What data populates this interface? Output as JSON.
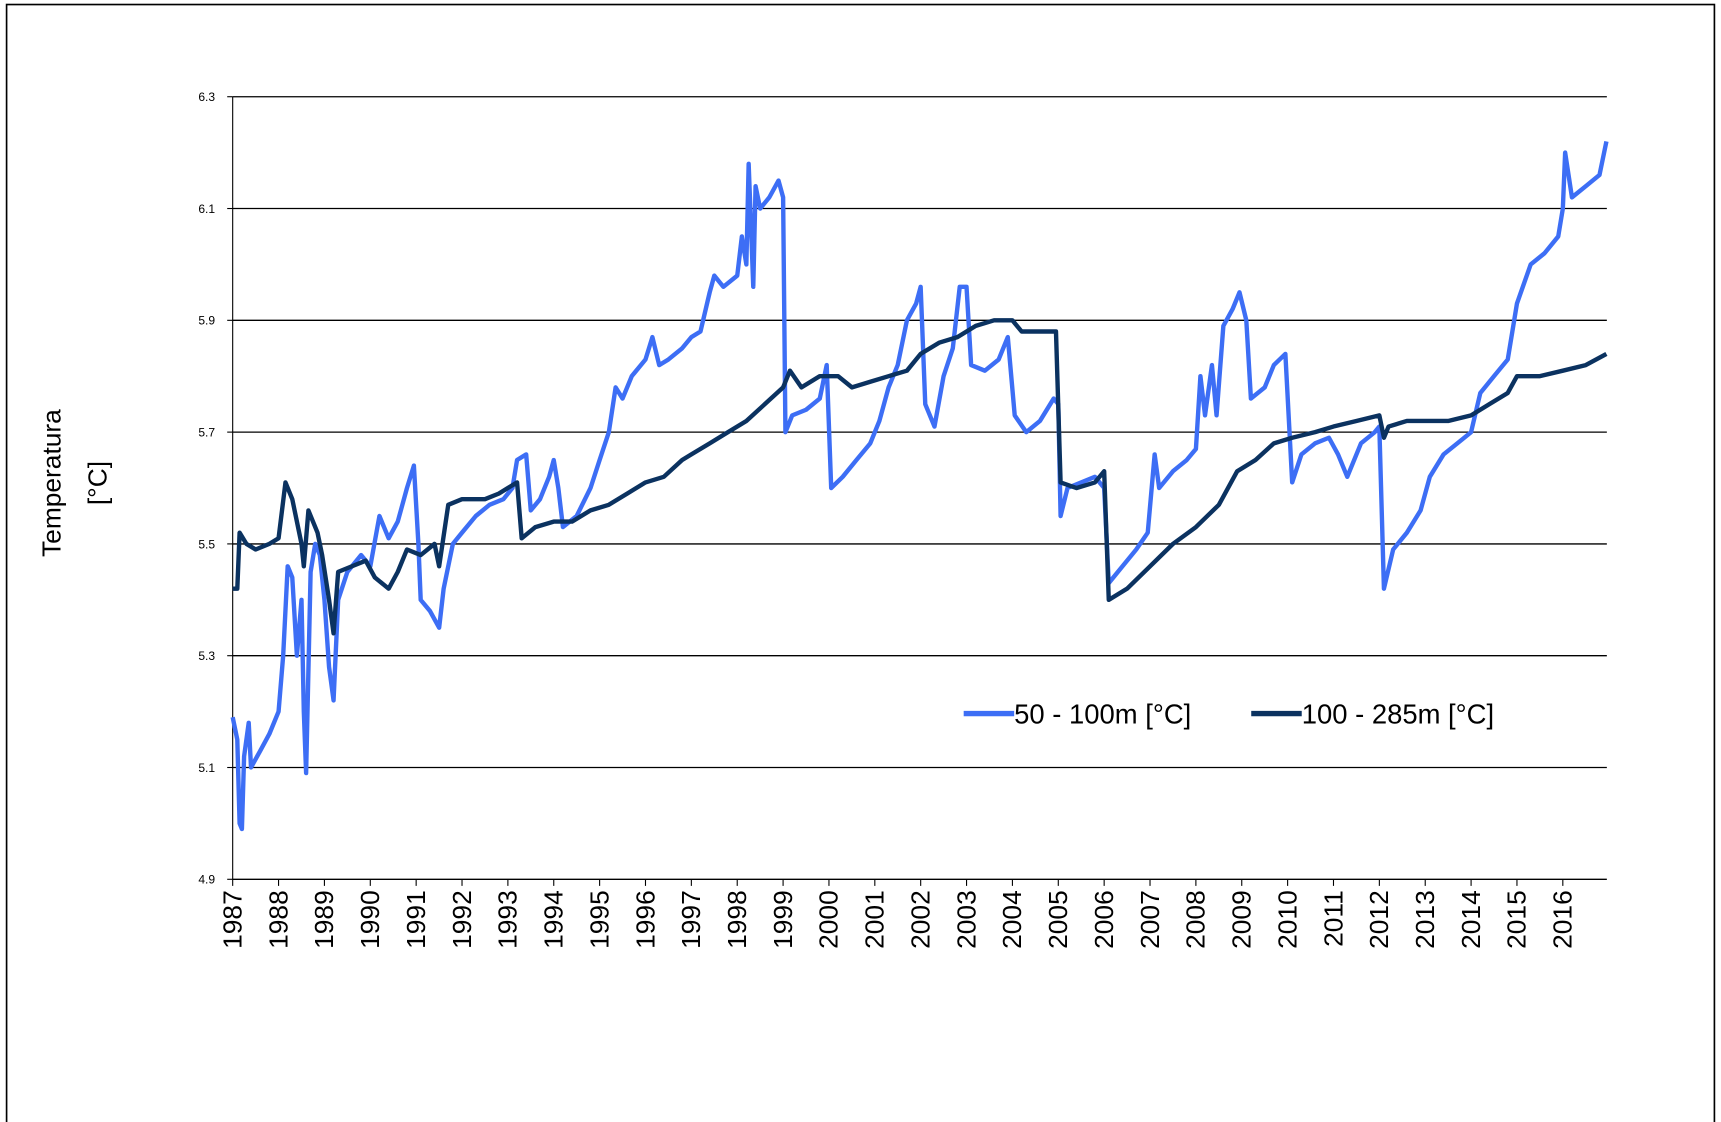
{
  "chart_data": {
    "type": "line",
    "y_label": [
      "Temperatura",
      "[°C]"
    ],
    "xlim": [
      1987,
      2016.96
    ],
    "xticks": [
      1987,
      1988,
      1989,
      1990,
      1991,
      1992,
      1993,
      1994,
      1995,
      1996,
      1997,
      1998,
      1999,
      2000,
      2001,
      2002,
      2003,
      2004,
      2005,
      2006,
      2007,
      2008,
      2009,
      2010,
      2011,
      2012,
      2013,
      2014,
      2015,
      2016
    ],
    "ylim": [
      4.9,
      6.3
    ],
    "yticks": [
      4.9,
      5.1,
      5.3,
      5.5,
      5.7,
      5.9,
      6.1,
      6.3
    ],
    "grid": true,
    "legend": "inside-right",
    "series": [
      {
        "name": "50 - 100m  [°C]",
        "color": "#3d6ef5",
        "x": [
          1987.0,
          1987.1,
          1987.15,
          1987.2,
          1987.25,
          1987.35,
          1987.4,
          1987.6,
          1987.8,
          1988.0,
          1988.1,
          1988.2,
          1988.3,
          1988.4,
          1988.5,
          1988.55,
          1988.6,
          1988.7,
          1988.8,
          1988.9,
          1989.0,
          1989.1,
          1989.2,
          1989.3,
          1989.5,
          1989.8,
          1990.0,
          1990.2,
          1990.4,
          1990.6,
          1990.8,
          1990.95,
          1991.05,
          1991.1,
          1991.3,
          1991.5,
          1991.6,
          1991.8,
          1992.0,
          1992.3,
          1992.6,
          1992.9,
          1993.1,
          1993.2,
          1993.4,
          1993.5,
          1993.7,
          1993.9,
          1994.0,
          1994.1,
          1994.2,
          1994.5,
          1994.8,
          1995.0,
          1995.2,
          1995.35,
          1995.5,
          1995.7,
          1996.0,
          1996.15,
          1996.3,
          1996.5,
          1996.8,
          1997.0,
          1997.2,
          1997.4,
          1997.5,
          1997.7,
          1998.0,
          1998.1,
          1998.2,
          1998.25,
          1998.35,
          1998.4,
          1998.5,
          1998.7,
          1998.9,
          1999.0,
          1999.05,
          1999.2,
          1999.5,
          1999.8,
          1999.95,
          2000.05,
          2000.3,
          2000.6,
          2000.9,
          2001.1,
          2001.3,
          2001.5,
          2001.7,
          2001.9,
          2002.0,
          2002.1,
          2002.3,
          2002.5,
          2002.7,
          2002.85,
          2003.0,
          2003.1,
          2003.4,
          2003.7,
          2003.9,
          2004.05,
          2004.3,
          2004.6,
          2004.9,
          2005.0,
          2005.05,
          2005.2,
          2005.5,
          2005.8,
          2006.0,
          2006.1,
          2006.4,
          2006.7,
          2006.95,
          2007.1,
          2007.2,
          2007.5,
          2007.8,
          2008.0,
          2008.1,
          2008.2,
          2008.35,
          2008.45,
          2008.6,
          2008.8,
          2008.95,
          2009.1,
          2009.2,
          2009.5,
          2009.7,
          2009.95,
          2010.1,
          2010.3,
          2010.6,
          2010.9,
          2011.1,
          2011.3,
          2011.6,
          2011.9,
          2012.0,
          2012.1,
          2012.3,
          2012.6,
          2012.9,
          2013.1,
          2013.4,
          2013.7,
          2014.0,
          2014.2,
          2014.5,
          2014.8,
          2015.0,
          2015.3,
          2015.6,
          2015.9,
          2016.0,
          2016.05,
          2016.2,
          2016.5,
          2016.8,
          2016.95
        ],
        "values": [
          5.19,
          5.15,
          5.0,
          4.99,
          5.12,
          5.18,
          5.1,
          5.13,
          5.16,
          5.2,
          5.3,
          5.46,
          5.44,
          5.3,
          5.4,
          5.2,
          5.09,
          5.45,
          5.5,
          5.48,
          5.4,
          5.28,
          5.22,
          5.4,
          5.45,
          5.48,
          5.46,
          5.55,
          5.51,
          5.54,
          5.6,
          5.64,
          5.5,
          5.4,
          5.38,
          5.35,
          5.42,
          5.5,
          5.52,
          5.55,
          5.57,
          5.58,
          5.6,
          5.65,
          5.66,
          5.56,
          5.58,
          5.62,
          5.65,
          5.6,
          5.53,
          5.55,
          5.6,
          5.65,
          5.7,
          5.78,
          5.76,
          5.8,
          5.83,
          5.87,
          5.82,
          5.83,
          5.85,
          5.87,
          5.88,
          5.95,
          5.98,
          5.96,
          5.98,
          6.05,
          6.0,
          6.18,
          5.96,
          6.14,
          6.1,
          6.12,
          6.15,
          6.12,
          5.7,
          5.73,
          5.74,
          5.76,
          5.82,
          5.6,
          5.62,
          5.65,
          5.68,
          5.72,
          5.78,
          5.82,
          5.9,
          5.93,
          5.96,
          5.75,
          5.71,
          5.8,
          5.85,
          5.96,
          5.96,
          5.82,
          5.81,
          5.83,
          5.87,
          5.73,
          5.7,
          5.72,
          5.76,
          5.75,
          5.55,
          5.6,
          5.61,
          5.62,
          5.6,
          5.43,
          5.46,
          5.49,
          5.52,
          5.66,
          5.6,
          5.63,
          5.65,
          5.67,
          5.8,
          5.73,
          5.82,
          5.73,
          5.89,
          5.92,
          5.95,
          5.9,
          5.76,
          5.78,
          5.82,
          5.84,
          5.61,
          5.66,
          5.68,
          5.69,
          5.66,
          5.62,
          5.68,
          5.7,
          5.71,
          5.42,
          5.49,
          5.52,
          5.56,
          5.62,
          5.66,
          5.68,
          5.7,
          5.77,
          5.8,
          5.83,
          5.93,
          6.0,
          6.02,
          6.05,
          6.1,
          6.2,
          6.12,
          6.14,
          6.16,
          6.22
        ]
      },
      {
        "name": "100 - 285m  [°C]",
        "color": "#0b3260",
        "x": [
          1987.0,
          1987.1,
          1987.15,
          1987.3,
          1987.5,
          1987.8,
          1988.0,
          1988.15,
          1988.3,
          1988.5,
          1988.55,
          1988.65,
          1988.85,
          1988.95,
          1989.1,
          1989.2,
          1989.3,
          1989.6,
          1989.9,
          1990.1,
          1990.4,
          1990.6,
          1990.8,
          1991.1,
          1991.4,
          1991.5,
          1991.7,
          1992.0,
          1992.5,
          1992.8,
          1993.0,
          1993.2,
          1993.3,
          1993.6,
          1994.0,
          1994.4,
          1994.8,
          1995.2,
          1995.6,
          1996.0,
          1996.4,
          1996.8,
          1997.0,
          1997.4,
          1997.8,
          1998.2,
          1998.6,
          1999.0,
          1999.15,
          1999.4,
          1999.8,
          2000.2,
          2000.5,
          2000.9,
          2001.3,
          2001.7,
          2002.0,
          2002.4,
          2002.8,
          2003.2,
          2003.6,
          2004.0,
          2004.2,
          2004.6,
          2004.95,
          2005.05,
          2005.4,
          2005.8,
          2006.0,
          2006.1,
          2006.5,
          2007.0,
          2007.5,
          2008.0,
          2008.5,
          2008.9,
          2009.3,
          2009.7,
          2010.1,
          2010.6,
          2011.0,
          2011.5,
          2012.0,
          2012.1,
          2012.2,
          2012.6,
          2013.0,
          2013.5,
          2014.0,
          2014.4,
          2014.8,
          2015.0,
          2015.5,
          2016.0,
          2016.5,
          2016.95
        ],
        "values": [
          5.42,
          5.42,
          5.52,
          5.5,
          5.49,
          5.5,
          5.51,
          5.61,
          5.58,
          5.5,
          5.46,
          5.56,
          5.52,
          5.48,
          5.4,
          5.34,
          5.45,
          5.46,
          5.47,
          5.44,
          5.42,
          5.45,
          5.49,
          5.48,
          5.5,
          5.46,
          5.57,
          5.58,
          5.58,
          5.59,
          5.6,
          5.61,
          5.51,
          5.53,
          5.54,
          5.54,
          5.56,
          5.57,
          5.59,
          5.61,
          5.62,
          5.65,
          5.66,
          5.68,
          5.7,
          5.72,
          5.75,
          5.78,
          5.81,
          5.78,
          5.8,
          5.8,
          5.78,
          5.79,
          5.8,
          5.81,
          5.84,
          5.86,
          5.87,
          5.89,
          5.9,
          5.9,
          5.88,
          5.88,
          5.88,
          5.61,
          5.6,
          5.61,
          5.63,
          5.4,
          5.42,
          5.46,
          5.5,
          5.53,
          5.57,
          5.63,
          5.65,
          5.68,
          5.69,
          5.7,
          5.71,
          5.72,
          5.73,
          5.69,
          5.71,
          5.72,
          5.72,
          5.72,
          5.73,
          5.75,
          5.77,
          5.8,
          5.8,
          5.81,
          5.82,
          5.84
        ]
      }
    ]
  }
}
